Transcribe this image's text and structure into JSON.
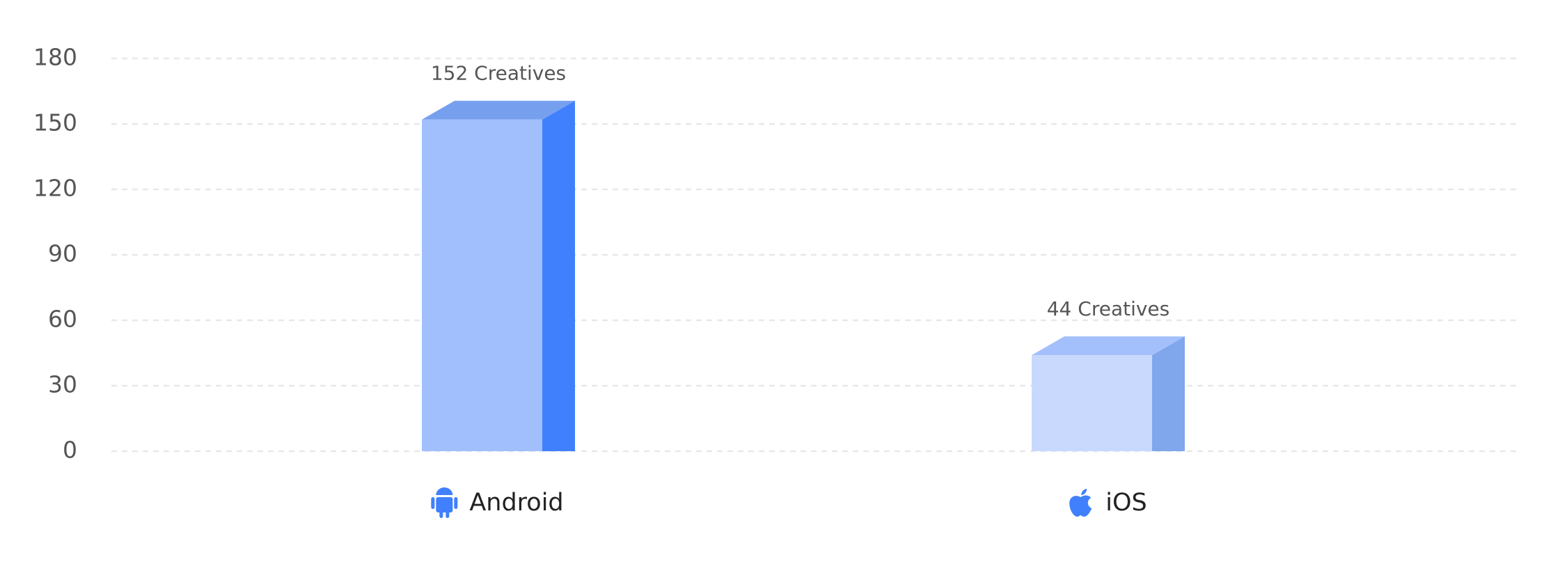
{
  "chart_data": {
    "type": "bar3d",
    "categories": [
      "Android",
      "iOS"
    ],
    "values": [
      152,
      44
    ],
    "value_labels": [
      "152 Creatives",
      "44 Creatives"
    ],
    "colors": [
      "#a0bffc",
      "#c8d9fd"
    ],
    "side_colors": [
      "#4080fd",
      "#80a7ec"
    ],
    "top_colors": [
      "#76a0ee",
      "#a3c0fc"
    ],
    "ylim": [
      0,
      180
    ],
    "yticks": [
      0,
      30,
      60,
      90,
      120,
      150,
      180
    ],
    "grid": true
  }
}
